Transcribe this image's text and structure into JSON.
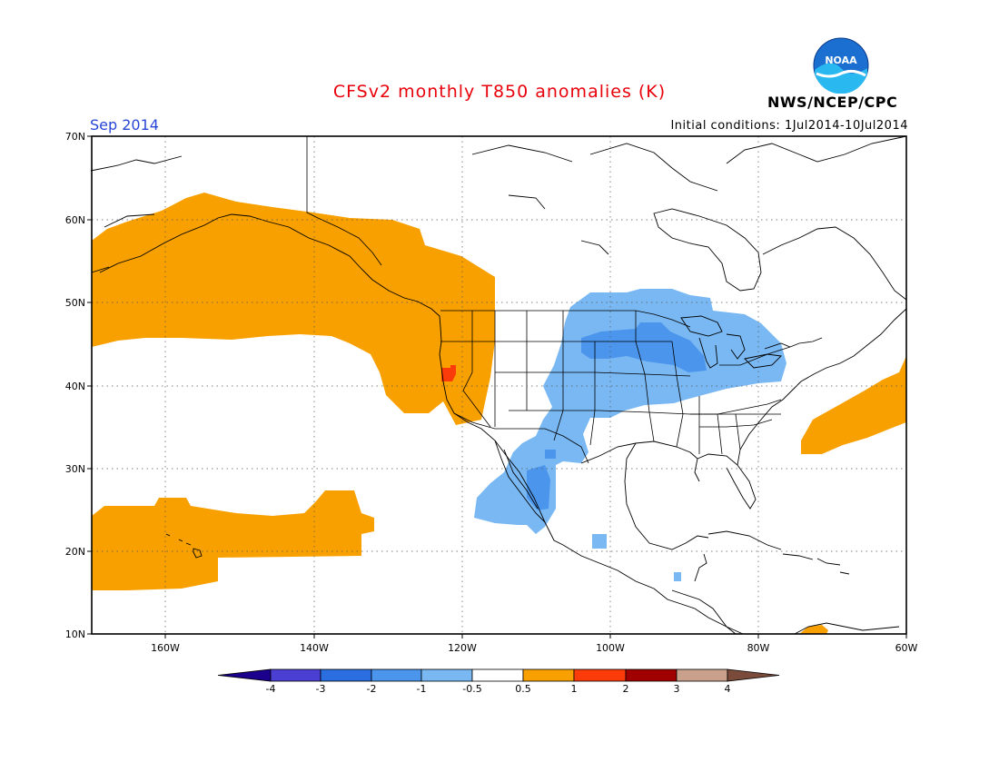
{
  "header": {
    "title": "CFSv2 monthly T850 anomalies (K)",
    "month": "Sep 2014",
    "init": "Initial conditions: 1Jul2014-10Jul2014",
    "org": "NWS/NCEP/CPC",
    "logo_text": "NOAA"
  },
  "axes": {
    "lat_labels": [
      "70N",
      "60N",
      "50N",
      "40N",
      "30N",
      "20N",
      "10N"
    ],
    "lon_labels": [
      "160W",
      "140W",
      "120W",
      "100W",
      "80W",
      "60W"
    ]
  },
  "colorbar": {
    "labels": [
      "-4",
      "-3",
      "-2",
      "-1",
      "-0.5",
      "0.5",
      "1",
      "2",
      "3",
      "4"
    ],
    "colors": [
      "#1a008c",
      "#4a3fd2",
      "#2a6ee0",
      "#4b96ec",
      "#79b8f3",
      "#ffffff",
      "#f8a000",
      "#fb3c0a",
      "#a00000",
      "#c8a08c",
      "#7a4a3a"
    ]
  },
  "map": {
    "region": "North America / NE Pacific",
    "lon_range": [
      -170,
      -60
    ],
    "lat_range": [
      10,
      70
    ],
    "warm_color": "#f8a000",
    "cool_color": "#79b8f3",
    "cooler_color": "#4b96ec",
    "hot_color": "#fb3c0a"
  }
}
